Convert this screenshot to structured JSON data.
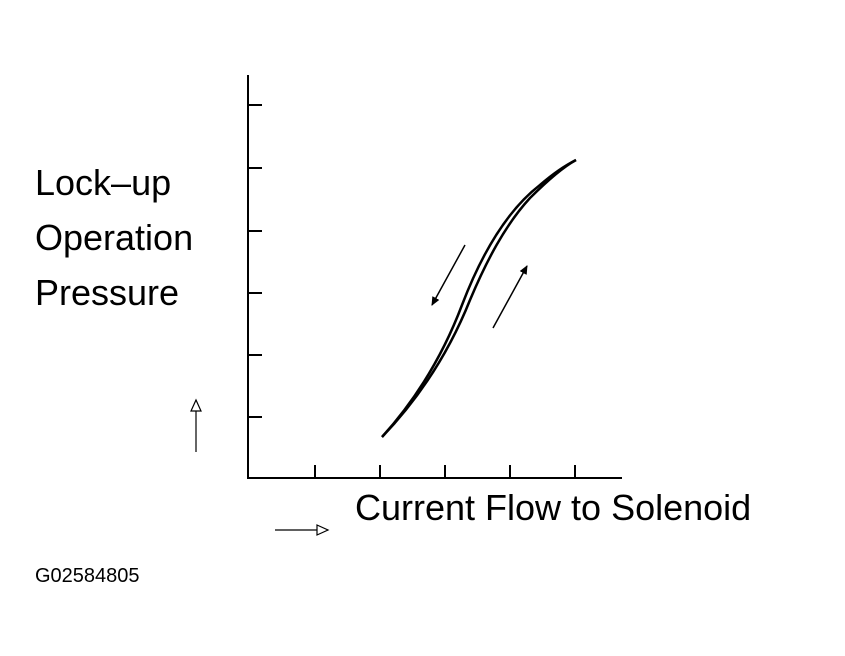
{
  "y_label_lines": [
    "Lock–up",
    "Operation",
    "Pressure"
  ],
  "x_label": "Current Flow to Solenoid",
  "figure_id": "G02584805"
}
